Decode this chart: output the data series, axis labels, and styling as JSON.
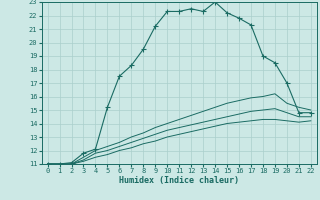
{
  "xlabel": "Humidex (Indice chaleur)",
  "bg_color": "#cce8e5",
  "grid_color": "#aacfcc",
  "line_color": "#1a6b63",
  "xlim": [
    -0.5,
    22.5
  ],
  "ylim": [
    11,
    23
  ],
  "xticks": [
    0,
    1,
    2,
    3,
    4,
    5,
    6,
    7,
    8,
    9,
    10,
    11,
    12,
    13,
    14,
    15,
    16,
    17,
    18,
    19,
    20,
    21,
    22
  ],
  "yticks": [
    11,
    12,
    13,
    14,
    15,
    16,
    17,
    18,
    19,
    20,
    21,
    22,
    23
  ],
  "line1_x": [
    0,
    1,
    2,
    3,
    4,
    5,
    6,
    7,
    8,
    9,
    10,
    11,
    12,
    13,
    14,
    15,
    16,
    17,
    18,
    19,
    20,
    21,
    22
  ],
  "line1_y": [
    11,
    11,
    11.1,
    11.8,
    12.1,
    15.2,
    17.5,
    18.3,
    19.5,
    21.2,
    22.3,
    22.3,
    22.5,
    22.3,
    23.0,
    22.2,
    21.8,
    21.3,
    19.0,
    18.5,
    17.0,
    14.8,
    14.8
  ],
  "line2_x": [
    0,
    1,
    2,
    3,
    4,
    5,
    6,
    7,
    8,
    9,
    10,
    11,
    12,
    13,
    14,
    15,
    16,
    17,
    18,
    19,
    20,
    21,
    22
  ],
  "line2_y": [
    11,
    11,
    11,
    11.5,
    12.0,
    12.3,
    12.6,
    13.0,
    13.3,
    13.7,
    14.0,
    14.3,
    14.6,
    14.9,
    15.2,
    15.5,
    15.7,
    15.9,
    16.0,
    16.2,
    15.5,
    15.2,
    15.0
  ],
  "line3_x": [
    0,
    1,
    2,
    3,
    4,
    5,
    6,
    7,
    8,
    9,
    10,
    11,
    12,
    13,
    14,
    15,
    16,
    17,
    18,
    19,
    20,
    21,
    22
  ],
  "line3_y": [
    11,
    11,
    11,
    11.3,
    11.8,
    12.0,
    12.3,
    12.6,
    12.9,
    13.2,
    13.5,
    13.7,
    13.9,
    14.1,
    14.3,
    14.5,
    14.7,
    14.9,
    15.0,
    15.1,
    14.8,
    14.5,
    14.5
  ],
  "line4_x": [
    0,
    1,
    2,
    3,
    4,
    5,
    6,
    7,
    8,
    9,
    10,
    11,
    12,
    13,
    14,
    15,
    16,
    17,
    18,
    19,
    20,
    21,
    22
  ],
  "line4_y": [
    11,
    11,
    11,
    11.2,
    11.5,
    11.7,
    12.0,
    12.2,
    12.5,
    12.7,
    13.0,
    13.2,
    13.4,
    13.6,
    13.8,
    14.0,
    14.1,
    14.2,
    14.3,
    14.3,
    14.2,
    14.1,
    14.2
  ],
  "tick_fontsize": 5.0,
  "xlabel_fontsize": 6.0,
  "marker_size": 2.0
}
